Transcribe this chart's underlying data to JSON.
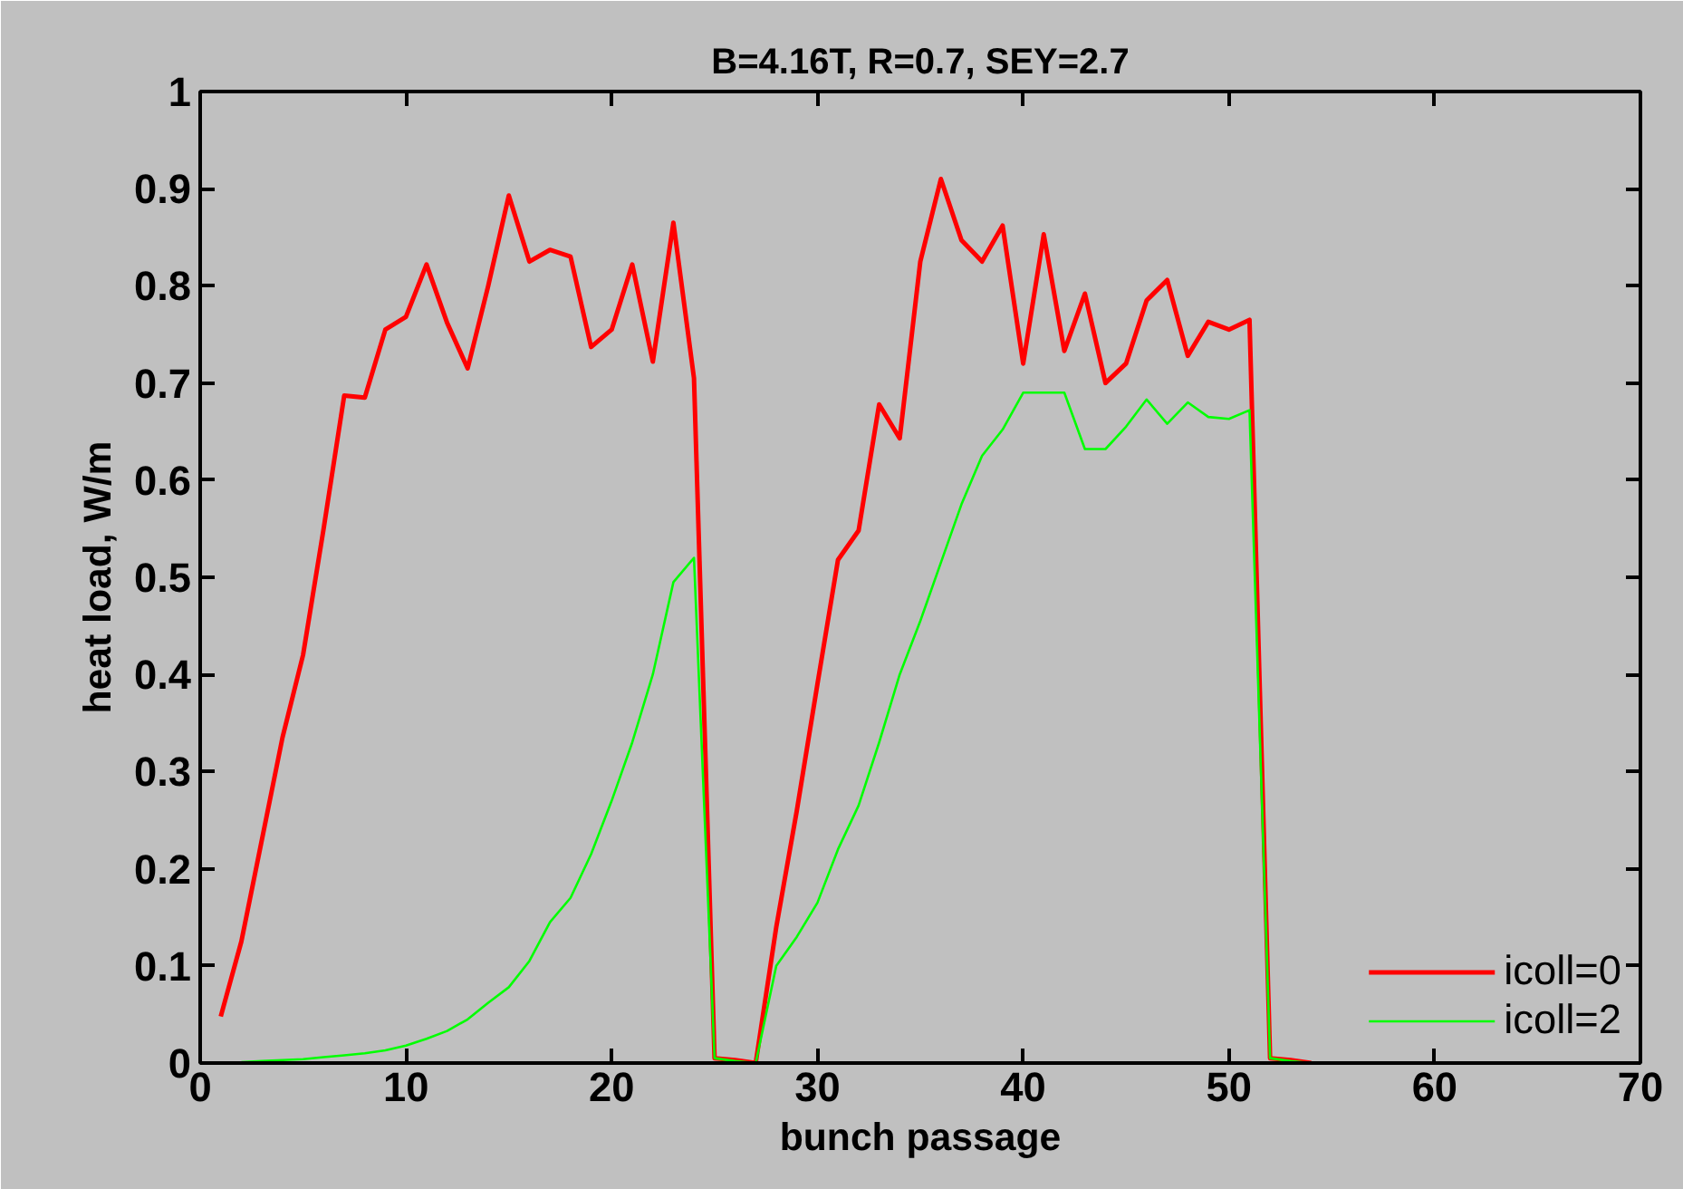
{
  "chart_data": {
    "type": "line",
    "title": "B=4.16T, R=0.7, SEY=2.7",
    "xlabel": "bunch passage",
    "ylabel": "heat load, W/m",
    "x": [
      1,
      2,
      3,
      4,
      5,
      6,
      7,
      8,
      9,
      10,
      11,
      12,
      13,
      14,
      15,
      16,
      17,
      18,
      19,
      20,
      21,
      22,
      23,
      24,
      25,
      26,
      27,
      28,
      29,
      30,
      31,
      32,
      33,
      34,
      35,
      36,
      37,
      38,
      39,
      40,
      41,
      42,
      43,
      44,
      45,
      46,
      47,
      48,
      49,
      50,
      51,
      52,
      53,
      54
    ],
    "series": [
      {
        "name": "icoll=0",
        "color": "#ff0000",
        "values": [
          0.048,
          0.125,
          0.23,
          0.335,
          0.42,
          0.55,
          0.687,
          0.685,
          0.755,
          0.768,
          0.822,
          0.762,
          0.715,
          0.8,
          0.893,
          0.825,
          0.837,
          0.83,
          0.737,
          0.755,
          0.822,
          0.722,
          0.865,
          0.705,
          0.005,
          0.003,
          0.0,
          0.14,
          0.26,
          0.39,
          0.518,
          0.548,
          0.678,
          0.643,
          0.825,
          0.91,
          0.847,
          0.825,
          0.862,
          0.72,
          0.853,
          0.733,
          0.792,
          0.7,
          0.72,
          0.785,
          0.806,
          0.728,
          0.763,
          0.755,
          0.765,
          0.005,
          0.003,
          0.0
        ]
      },
      {
        "name": "icoll=2",
        "color": "#00ff00",
        "values": [
          null,
          0.001,
          0.002,
          0.003,
          0.004,
          0.006,
          0.008,
          0.01,
          0.013,
          0.018,
          0.025,
          0.033,
          0.045,
          0.062,
          0.078,
          0.105,
          0.145,
          0.17,
          0.215,
          0.27,
          0.33,
          0.4,
          0.495,
          0.52,
          0.005,
          0.002,
          0.0,
          0.1,
          0.13,
          0.165,
          0.22,
          0.265,
          0.33,
          0.4,
          0.455,
          0.515,
          0.575,
          0.625,
          0.652,
          0.69,
          0.69,
          0.69,
          0.632,
          0.632,
          0.655,
          0.683,
          0.658,
          0.68,
          0.665,
          0.663,
          0.672,
          0.005,
          0.002,
          0.0
        ]
      }
    ],
    "xlim": [
      0,
      70
    ],
    "xticks": [
      0,
      10,
      20,
      30,
      40,
      50,
      60,
      70
    ],
    "ylim": [
      0,
      1
    ],
    "yticks": [
      0,
      0.1,
      0.2,
      0.3,
      0.4,
      0.5,
      0.6,
      0.7,
      0.8,
      0.9,
      1
    ],
    "legend": "bottom right",
    "grid": false,
    "line_style": "solid"
  }
}
